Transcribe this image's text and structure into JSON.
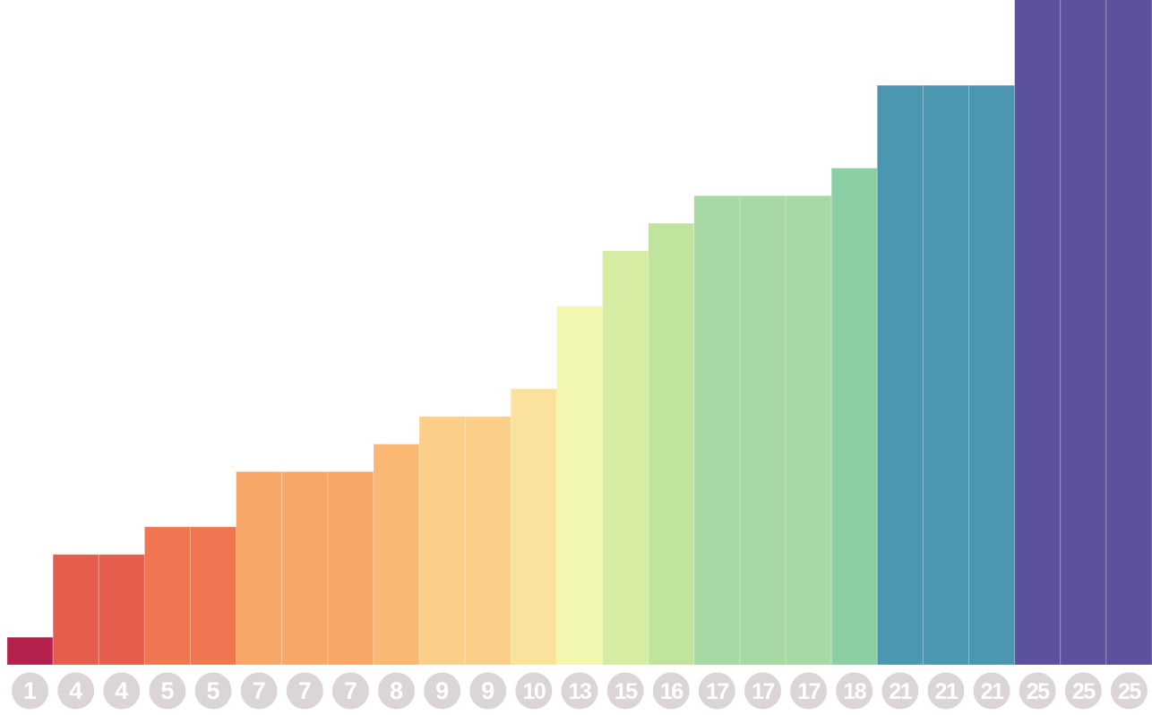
{
  "chart_data": {
    "type": "bar",
    "title": "",
    "xlabel": "",
    "ylabel": "",
    "ylim": [
      0,
      24
    ],
    "grid": false,
    "legend": "none",
    "categories": [
      "1",
      "4",
      "4",
      "5",
      "5",
      "7",
      "7",
      "7",
      "8",
      "9",
      "9",
      "10",
      "13",
      "15",
      "16",
      "17",
      "17",
      "17",
      "18",
      "21",
      "21",
      "21",
      "25",
      "25",
      "25"
    ],
    "values": [
      1,
      4,
      4,
      5,
      5,
      7,
      7,
      7,
      8,
      9,
      9,
      10,
      13,
      15,
      16,
      17,
      17,
      17,
      18,
      21,
      21,
      21,
      25,
      25,
      25
    ],
    "colors": [
      "#b5204c",
      "#e65d4e",
      "#e65d4e",
      "#ef7651",
      "#ef7651",
      "#f7a768",
      "#f7a768",
      "#f7a768",
      "#fab874",
      "#fbcf88",
      "#fbcf88",
      "#fbe29c",
      "#f2f7b0",
      "#d7ecA3",
      "#c0e49e",
      "#a6d9a3",
      "#a6d9a3",
      "#a6d9a3",
      "#8ccfa4",
      "#4b97b2",
      "#4b97b2",
      "#4b97b2",
      "#5c519d",
      "#5c519d",
      "#5c519d"
    ],
    "label_badge_color": "#dcd5d7"
  }
}
